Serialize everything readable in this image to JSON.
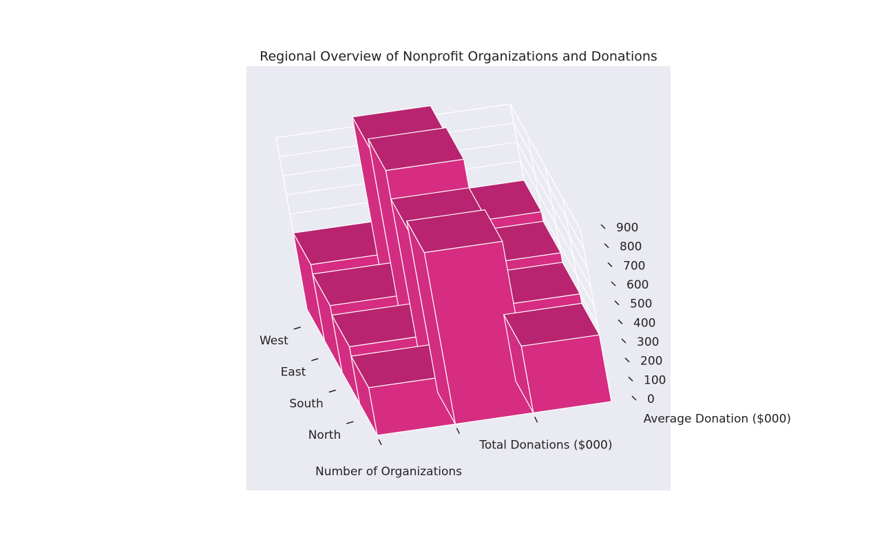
{
  "chart_data": {
    "type": "bar3d",
    "title": "Regional Overview of Nonprofit Organizations and Donations",
    "regions": [
      "North",
      "South",
      "East",
      "West"
    ],
    "metrics": [
      "Number of Organizations",
      "Total Donations ($000)",
      "Average Donation ($000)"
    ],
    "values": [
      [
        250,
        900,
        350
      ],
      [
        300,
        850,
        400
      ],
      [
        350,
        1000,
        450
      ],
      [
        400,
        950,
        500
      ]
    ],
    "zlim": [
      0,
      900
    ],
    "zticks": [
      0,
      100,
      200,
      300,
      400,
      500,
      600,
      700,
      800,
      900
    ],
    "bar_color": "#d62c82",
    "bar_top_color": "#b8246f",
    "bar_side_color": "#d22d80",
    "pane_color": "#eaeaf2",
    "grid": true
  }
}
